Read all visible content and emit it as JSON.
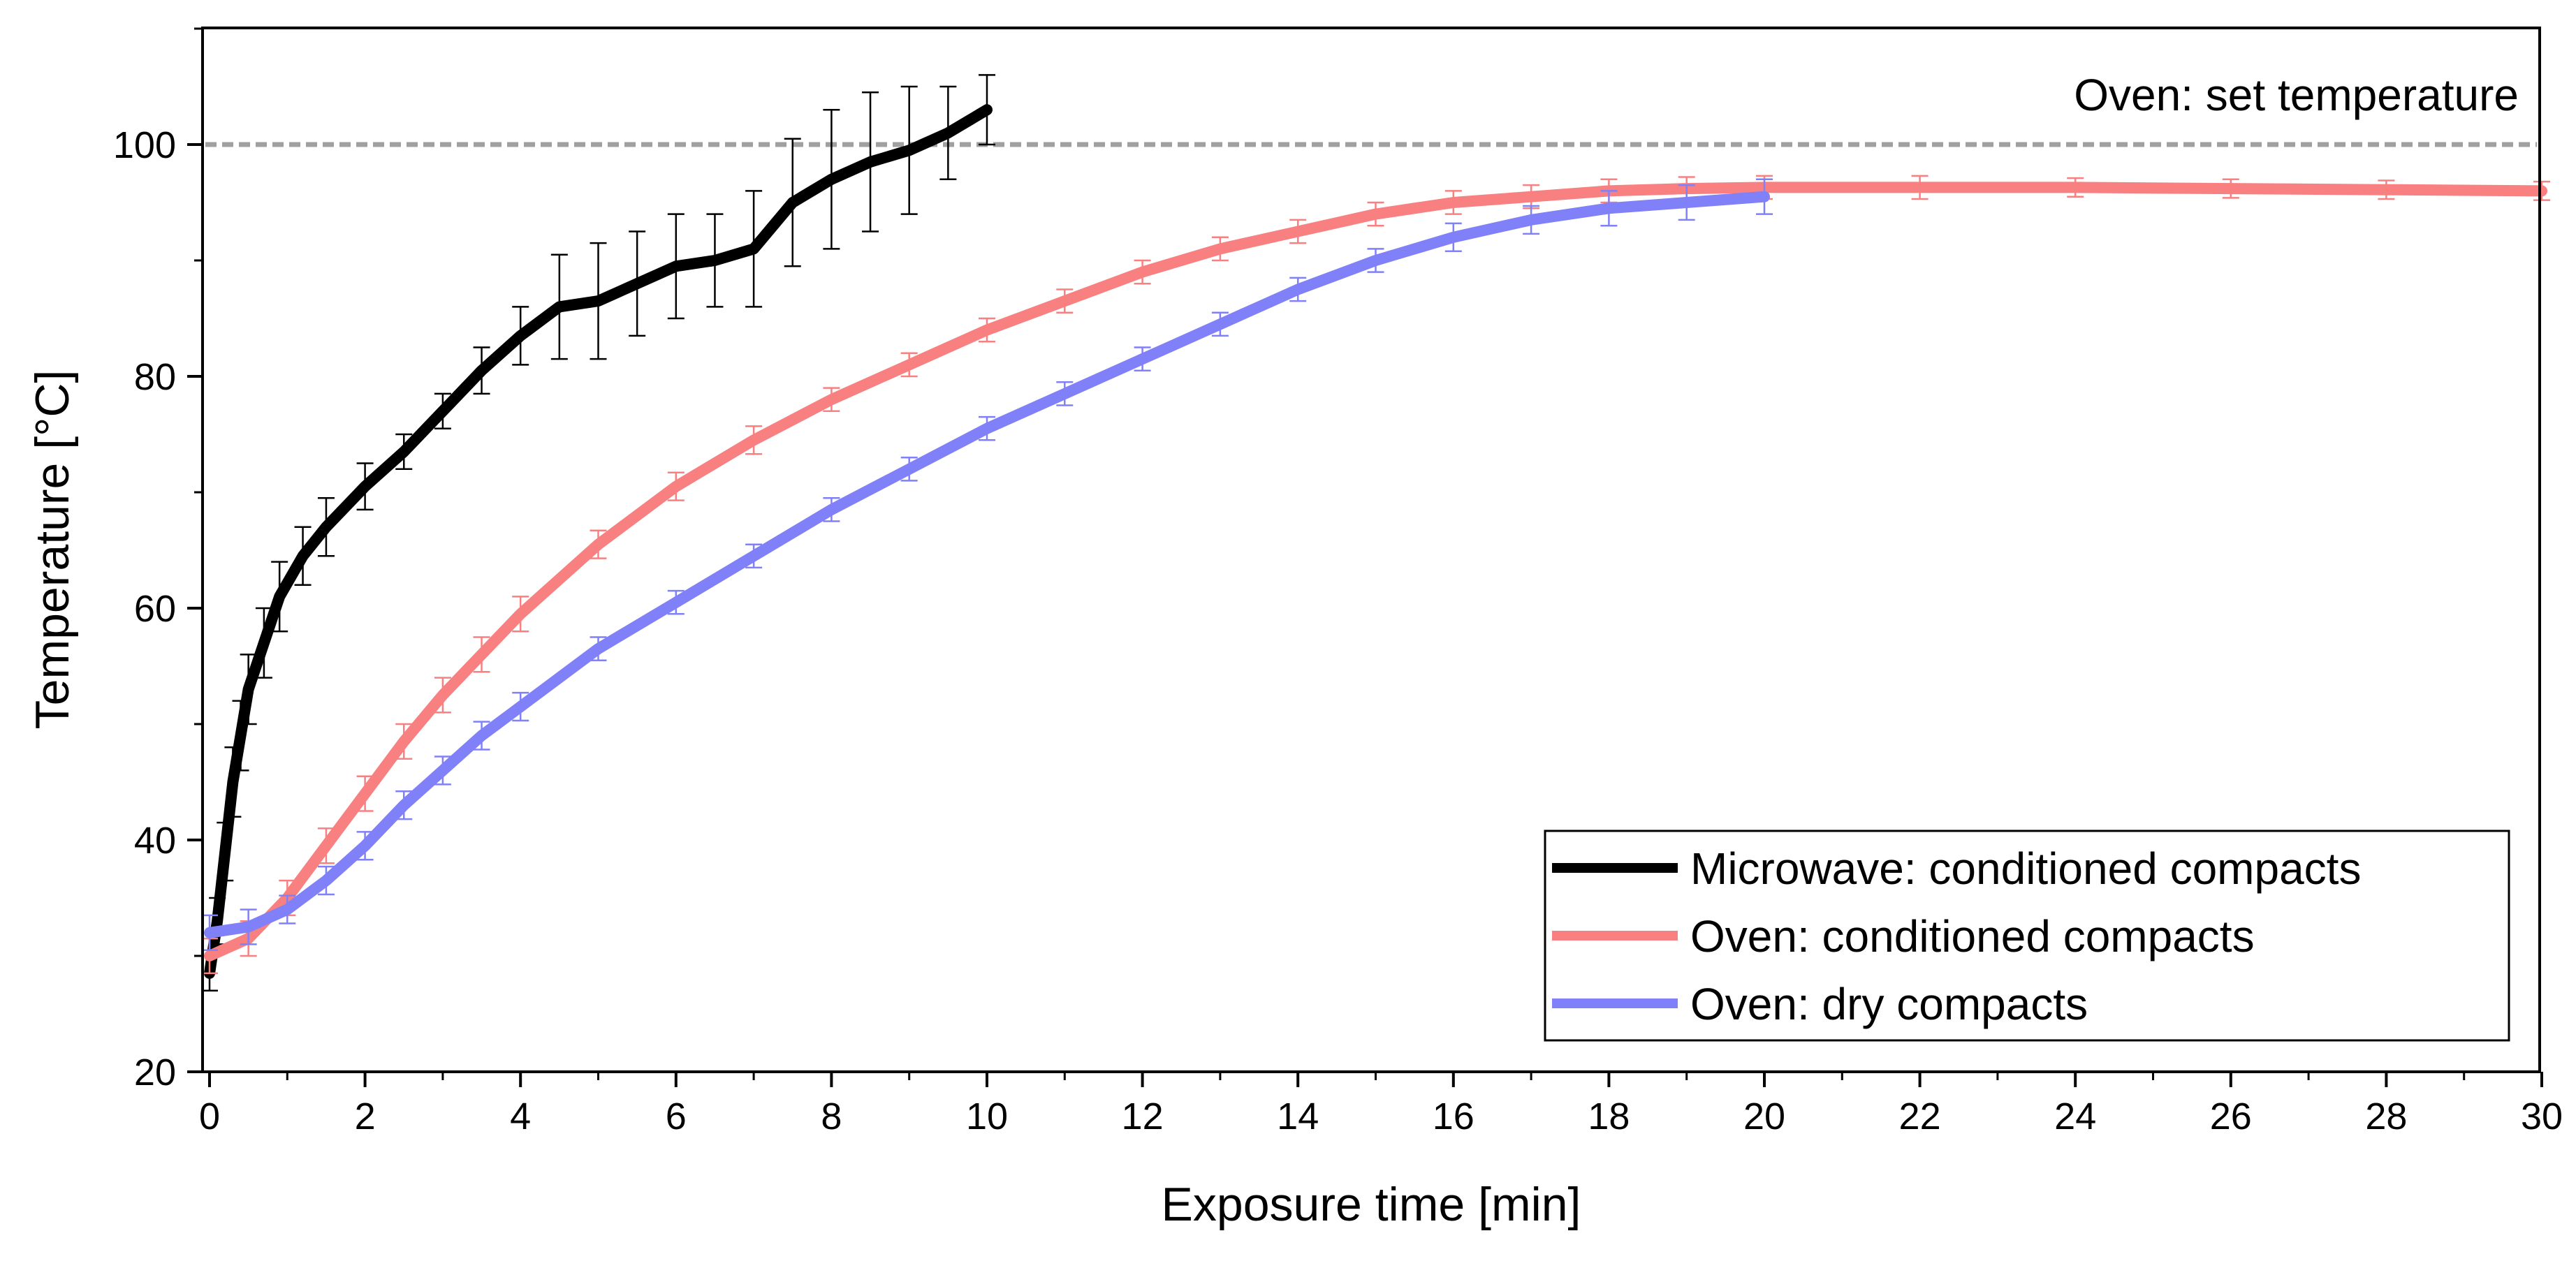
{
  "colors": {
    "microwave": "#000000",
    "oven_conditioned": "#f88080",
    "oven_dry": "#8080f8",
    "set_temperature": "#a0a0a0"
  },
  "chart_data": {
    "type": "line",
    "xlabel": "Exposure time [min]",
    "ylabel": "Temperature [°C]",
    "xlim": [
      0,
      30
    ],
    "ylim": [
      20,
      110
    ],
    "x_ticks": [
      0,
      2,
      4,
      6,
      8,
      10,
      12,
      14,
      16,
      18,
      20,
      22,
      24,
      26,
      28,
      30
    ],
    "y_ticks": [
      20,
      40,
      60,
      80,
      100
    ],
    "grid": false,
    "legend_position": "bottom-right",
    "annotation": "Oven: set temperature",
    "reference_line": {
      "name": "Oven: set temperature",
      "y": 100
    },
    "series": [
      {
        "name": "Microwave: conditioned compacts",
        "color": "#000000",
        "x": [
          0,
          0.1,
          0.2,
          0.3,
          0.4,
          0.5,
          0.7,
          0.9,
          1.2,
          1.5,
          2,
          2.5,
          3,
          3.5,
          4,
          4.5,
          5,
          5.5,
          6,
          6.5,
          7,
          7.5,
          8,
          8.5,
          9,
          9.5,
          10
        ],
        "y": [
          28.5,
          33,
          39,
          45,
          49,
          53,
          57,
          61,
          64.5,
          67,
          70.5,
          73.5,
          77,
          80.5,
          83.5,
          86,
          86.5,
          88,
          89.5,
          90,
          91,
          95,
          97,
          98.5,
          99.5,
          101,
          103
        ],
        "error": [
          1.5,
          2,
          2.5,
          3,
          3,
          3,
          3,
          3,
          2.5,
          2.5,
          2,
          1.5,
          1.5,
          2,
          2.5,
          4.5,
          5,
          4.5,
          4.5,
          4,
          5,
          5.5,
          6,
          6,
          5.5,
          4,
          3
        ]
      },
      {
        "name": "Oven: conditioned compacts",
        "color": "#f88080",
        "x": [
          0,
          0.5,
          1,
          1.5,
          2,
          2.5,
          3,
          3.5,
          4,
          5,
          6,
          7,
          8,
          9,
          10,
          11,
          12,
          13,
          14,
          15,
          16,
          17,
          18,
          19,
          20,
          22,
          24,
          26,
          28,
          30
        ],
        "y": [
          30,
          31.5,
          35,
          39.5,
          44,
          48.5,
          52.5,
          56,
          59.5,
          65.5,
          70.5,
          74.5,
          78,
          81,
          84,
          86.5,
          89,
          91,
          92.5,
          94,
          95,
          95.5,
          96,
          96.2,
          96.3,
          96.3,
          96.3,
          96.2,
          96.1,
          96
        ],
        "error": [
          1.5,
          1.5,
          1.5,
          1.5,
          1.5,
          1.5,
          1.5,
          1.5,
          1.5,
          1.2,
          1.2,
          1.2,
          1,
          1,
          1,
          1,
          1,
          1,
          1,
          1,
          1,
          1,
          1,
          1,
          1,
          1,
          0.8,
          0.8,
          0.8,
          0.8
        ]
      },
      {
        "name": "Oven: dry compacts",
        "color": "#8080f8",
        "x": [
          0,
          0.5,
          1,
          1.5,
          2,
          2.5,
          3,
          3.5,
          4,
          5,
          6,
          7,
          8,
          9,
          10,
          11,
          12,
          13,
          14,
          15,
          16,
          17,
          18,
          19,
          20
        ],
        "y": [
          32,
          32.5,
          34,
          36.5,
          39.5,
          43,
          46,
          49,
          51.5,
          56.5,
          60.5,
          64.5,
          68.5,
          72,
          75.5,
          78.5,
          81.5,
          84.5,
          87.5,
          90,
          92,
          93.5,
          94.5,
          95,
          95.5
        ],
        "error": [
          1.5,
          1.5,
          1.2,
          1.2,
          1.2,
          1.2,
          1.2,
          1.2,
          1.2,
          1,
          1,
          1,
          1,
          1,
          1,
          1,
          1,
          1,
          1,
          1,
          1.2,
          1.2,
          1.5,
          1.5,
          1.5
        ]
      }
    ]
  }
}
